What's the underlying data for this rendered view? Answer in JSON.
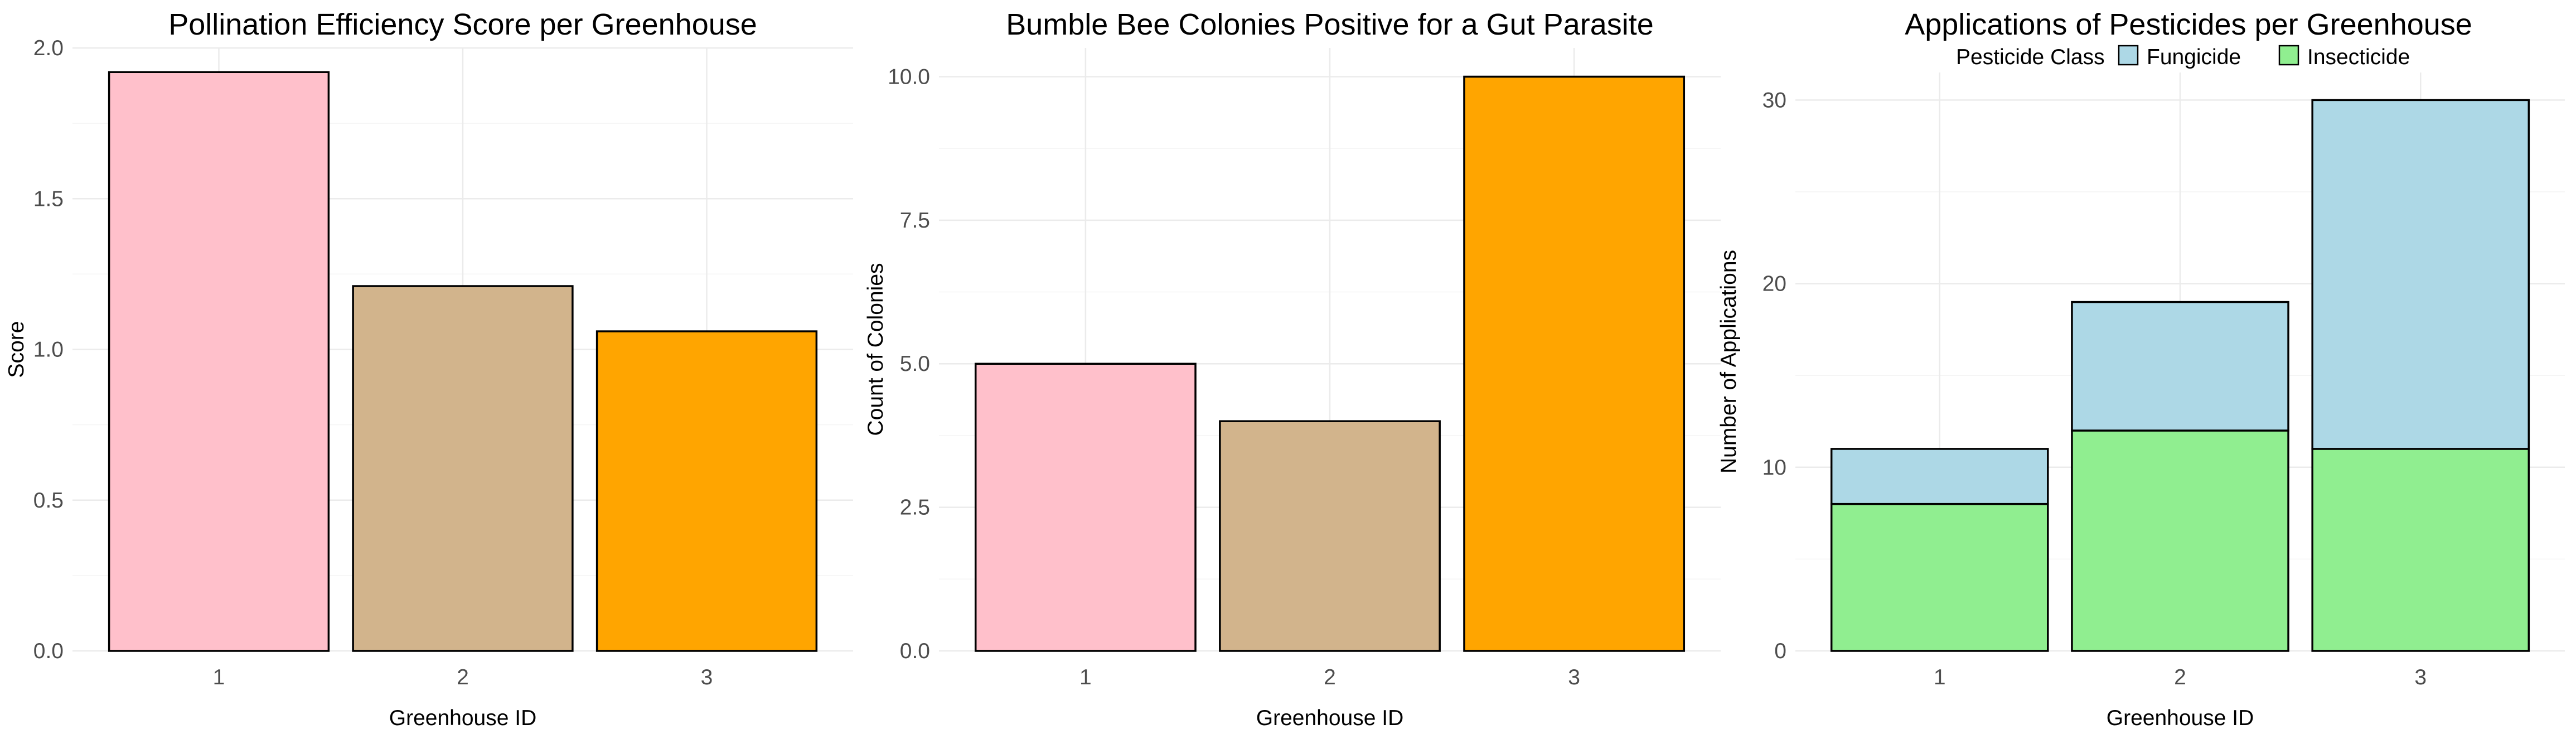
{
  "chart_data": [
    {
      "type": "bar",
      "title": "Pollination Efficiency Score per Greenhouse",
      "xlabel": "Greenhouse ID",
      "ylabel": "Score",
      "categories": [
        "1",
        "2",
        "3"
      ],
      "values": [
        1.92,
        1.21,
        1.06
      ],
      "colors": [
        "#FFC0CB",
        "#D2B48C",
        "#FFA500"
      ],
      "ylim": [
        0,
        2.0
      ],
      "yticks": [
        "0.0",
        "0.5",
        "1.0",
        "1.5",
        "2.0"
      ],
      "grid": true,
      "legend": null
    },
    {
      "type": "bar",
      "title": "Bumble Bee Colonies Positive for a Gut Parasite",
      "xlabel": "Greenhouse ID",
      "ylabel": "Count of Colonies",
      "categories": [
        "1",
        "2",
        "3"
      ],
      "values": [
        5,
        4,
        10
      ],
      "colors": [
        "#FFC0CB",
        "#D2B48C",
        "#FFA500"
      ],
      "ylim": [
        0,
        10.5
      ],
      "yticks": [
        "0.0",
        "2.5",
        "5.0",
        "7.5",
        "10.0"
      ],
      "grid": true,
      "legend": null
    },
    {
      "type": "bar",
      "stacked": true,
      "title": "Applications of Pesticides per Greenhouse",
      "xlabel": "Greenhouse ID",
      "ylabel": "Number of Applications",
      "categories": [
        "1",
        "2",
        "3"
      ],
      "series": [
        {
          "name": "Insecticide",
          "values": [
            8,
            12,
            11
          ],
          "color": "#90EE90"
        },
        {
          "name": "Fungicide",
          "values": [
            3,
            7,
            19
          ],
          "color": "#ADD8E6"
        }
      ],
      "ylim": [
        0,
        31.5
      ],
      "yticks": [
        "0",
        "10",
        "20",
        "30"
      ],
      "grid": true,
      "legend": {
        "title": "Pesticide Class",
        "position": "top",
        "entries": [
          "Fungicide",
          "Insecticide"
        ]
      }
    }
  ]
}
